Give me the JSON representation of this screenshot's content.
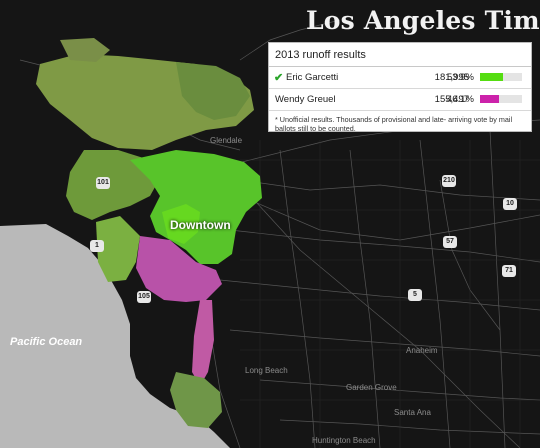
{
  "brand": {
    "name": "Los Angeles Times"
  },
  "results": {
    "title": "2013 runoff results",
    "rows": [
      {
        "winner": true,
        "name": "Eric Garcetti",
        "votes": "181,995",
        "percent": "53.9%",
        "share": 53.9,
        "color": "#55dd11"
      },
      {
        "winner": false,
        "name": "Wendy Greuel",
        "votes": "155,497",
        "percent": "46.1%",
        "share": 46.1,
        "color": "#cc22aa"
      }
    ],
    "note": "* Unofficial results. Thousands of provisional and late- arriving vote by mail ballots still to be counted."
  },
  "map": {
    "labels": {
      "downtown": "Downtown",
      "ocean": "Pacific Ocean",
      "glendale": "Glendale",
      "long_beach": "Long Beach",
      "anaheim": "Anaheim",
      "garden_grove": "Garden Grove",
      "santa_ana": "Santa Ana",
      "huntington_beach": "Huntington Beach"
    },
    "shields": [
      "101",
      "210",
      "10",
      "57",
      "71",
      "5",
      "105",
      "1"
    ],
    "colors": {
      "ocean": "#b9b9b9",
      "land": "#151515",
      "roads": "#565656",
      "garcetti": "#55dd11",
      "greuel": "#cc22aa",
      "mixed": "#7f9a45"
    }
  }
}
